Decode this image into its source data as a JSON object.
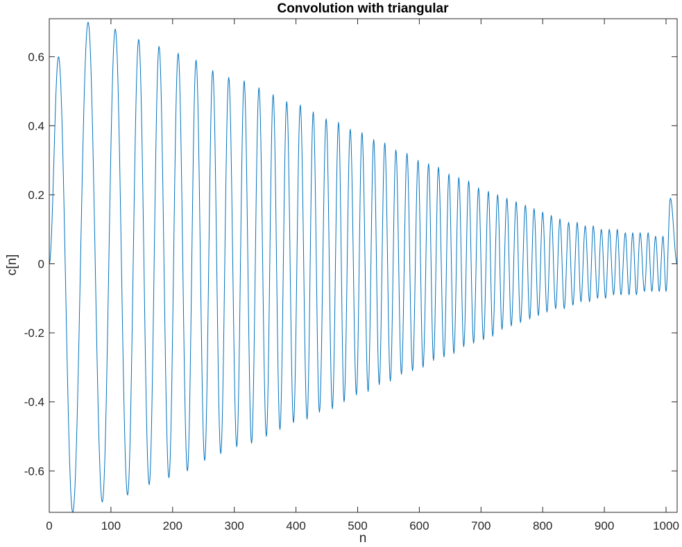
{
  "chart_data": {
    "type": "line",
    "title": "Convolution with triangular",
    "xlabel": "n",
    "ylabel": "c[n]",
    "xlim": [
      0,
      1018
    ],
    "ylim": [
      -0.72,
      0.71
    ],
    "xticks": [
      0,
      100,
      200,
      300,
      400,
      500,
      600,
      700,
      800,
      900,
      1000
    ],
    "xtick_labels": [
      "0",
      "100",
      "200",
      "300",
      "400",
      "500",
      "600",
      "700",
      "800",
      "900",
      "1000"
    ],
    "yticks": [
      0.6,
      0.4,
      0.2,
      0,
      -0.2,
      -0.4,
      -0.6
    ],
    "ytick_labels": [
      "0.6",
      "0.4",
      "0.2",
      "0",
      "-0.2",
      "-0.4",
      "-0.6"
    ],
    "grid": false,
    "line_color": "#0072BD",
    "series": [
      {
        "x": [
          0,
          15,
          38,
          63,
          86,
          107,
          127,
          145,
          162,
          178,
          194,
          209,
          224,
          238,
          252,
          265,
          278,
          291,
          304,
          316,
          328,
          340,
          352,
          363,
          374,
          385,
          396,
          407,
          418,
          428,
          438,
          449,
          459,
          469,
          478,
          488,
          498,
          507,
          517,
          526,
          535,
          544,
          553,
          562,
          571,
          580,
          589,
          598,
          606,
          615,
          623,
          631,
          640,
          648,
          656,
          664,
          672,
          680,
          688,
          696,
          704,
          712,
          719,
          727,
          734,
          742,
          749,
          757,
          764,
          772,
          779,
          786,
          793,
          800,
          807,
          814,
          821,
          828,
          835,
          842,
          849,
          856,
          862,
          869,
          876,
          882,
          889,
          895,
          902,
          908,
          915,
          921,
          927,
          934,
          940,
          946,
          952,
          958,
          965,
          971,
          977,
          983,
          989,
          995,
          1000,
          1007,
          1018
        ],
        "y": [
          0,
          0.6,
          -0.72,
          0.7,
          -0.69,
          0.68,
          -0.67,
          0.65,
          -0.64,
          0.63,
          -0.62,
          0.61,
          -0.6,
          0.59,
          -0.57,
          0.56,
          -0.55,
          0.54,
          -0.53,
          0.53,
          -0.52,
          0.51,
          -0.5,
          0.49,
          -0.48,
          0.47,
          -0.46,
          0.46,
          -0.45,
          0.44,
          -0.43,
          0.42,
          -0.42,
          0.41,
          -0.4,
          0.39,
          -0.38,
          0.38,
          -0.37,
          0.36,
          -0.35,
          0.35,
          -0.34,
          0.33,
          -0.32,
          0.32,
          -0.31,
          0.3,
          -0.3,
          0.29,
          -0.28,
          0.28,
          -0.27,
          0.26,
          -0.26,
          0.25,
          -0.24,
          0.24,
          -0.23,
          0.22,
          -0.22,
          0.21,
          -0.21,
          0.2,
          -0.19,
          0.19,
          -0.18,
          0.18,
          -0.17,
          0.17,
          -0.16,
          0.16,
          -0.15,
          0.15,
          -0.14,
          0.14,
          -0.13,
          0.13,
          -0.13,
          0.12,
          -0.12,
          0.12,
          -0.11,
          0.11,
          -0.11,
          0.11,
          -0.1,
          0.1,
          -0.1,
          0.1,
          -0.09,
          0.1,
          -0.09,
          0.09,
          -0.09,
          0.09,
          -0.09,
          0.09,
          -0.08,
          0.09,
          -0.08,
          0.08,
          -0.08,
          0.08,
          -0.08,
          0.19,
          0
        ]
      }
    ]
  }
}
